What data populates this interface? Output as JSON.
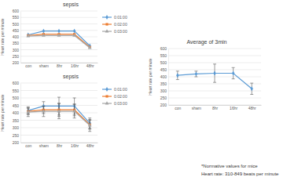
{
  "chart_data": [
    {
      "type": "line",
      "title": "sepsis",
      "y_label": "Heart rate per minute",
      "categories": [
        "con",
        "sham",
        "8hr",
        "16hr",
        "48hr"
      ],
      "series": [
        {
          "name": "0:01:00",
          "color": "#5b9bd5",
          "marker": "diamond",
          "values": [
            415,
            445,
            445,
            445,
            330
          ]
        },
        {
          "name": "0:02:00",
          "color": "#ed7d31",
          "marker": "square",
          "values": [
            410,
            420,
            420,
            420,
            320
          ]
        },
        {
          "name": "0:03:00",
          "color": "#a5a5a5",
          "marker": "triangle",
          "values": [
            405,
            410,
            410,
            410,
            315
          ]
        }
      ],
      "ylim": [
        200,
        600
      ],
      "yticks": [
        200,
        250,
        300,
        350,
        400,
        450,
        500,
        550,
        600
      ],
      "grid": true,
      "legend": "right"
    },
    {
      "type": "line",
      "title": "sepsis",
      "y_label": "Heart rate per minute",
      "categories": [
        "con",
        "sham",
        "8hr",
        "16hr",
        "48hr"
      ],
      "series": [
        {
          "name": "0:01:00",
          "color": "#5b9bd5",
          "marker": "diamond",
          "values": [
            415,
            445,
            445,
            445,
            330
          ],
          "errors": [
            25,
            30,
            60,
            55,
            35
          ]
        },
        {
          "name": "0:02:00",
          "color": "#ed7d31",
          "marker": "square",
          "values": [
            410,
            420,
            420,
            420,
            320
          ],
          "errors": [
            20,
            25,
            45,
            40,
            30
          ]
        },
        {
          "name": "0:03:00",
          "color": "#a5a5a5",
          "marker": "triangle",
          "values": [
            405,
            410,
            410,
            410,
            315
          ],
          "errors": [
            30,
            35,
            50,
            45,
            40
          ]
        }
      ],
      "ylim": [
        200,
        600
      ],
      "yticks": [
        200,
        250,
        300,
        350,
        400,
        450,
        500,
        550,
        600
      ],
      "grid": true,
      "legend": "right"
    },
    {
      "type": "line",
      "title": "Average of 3min",
      "y_label": "Heart rate per minute",
      "categories": [
        "con",
        "sham",
        "8hr",
        "16hr",
        "48hr"
      ],
      "series": [
        {
          "color": "#5b9bd5",
          "marker": "diamond",
          "values": [
            410,
            420,
            425,
            425,
            315
          ],
          "errors": [
            30,
            20,
            65,
            40,
            40
          ]
        }
      ],
      "ylim": [
        200,
        600
      ],
      "yticks": [
        200,
        250,
        300,
        350,
        400,
        450,
        500,
        550,
        600
      ],
      "grid": true,
      "annotations": [
        "*Normative values for mice",
        "Heart rate: 310-849 beats per minute"
      ]
    }
  ]
}
